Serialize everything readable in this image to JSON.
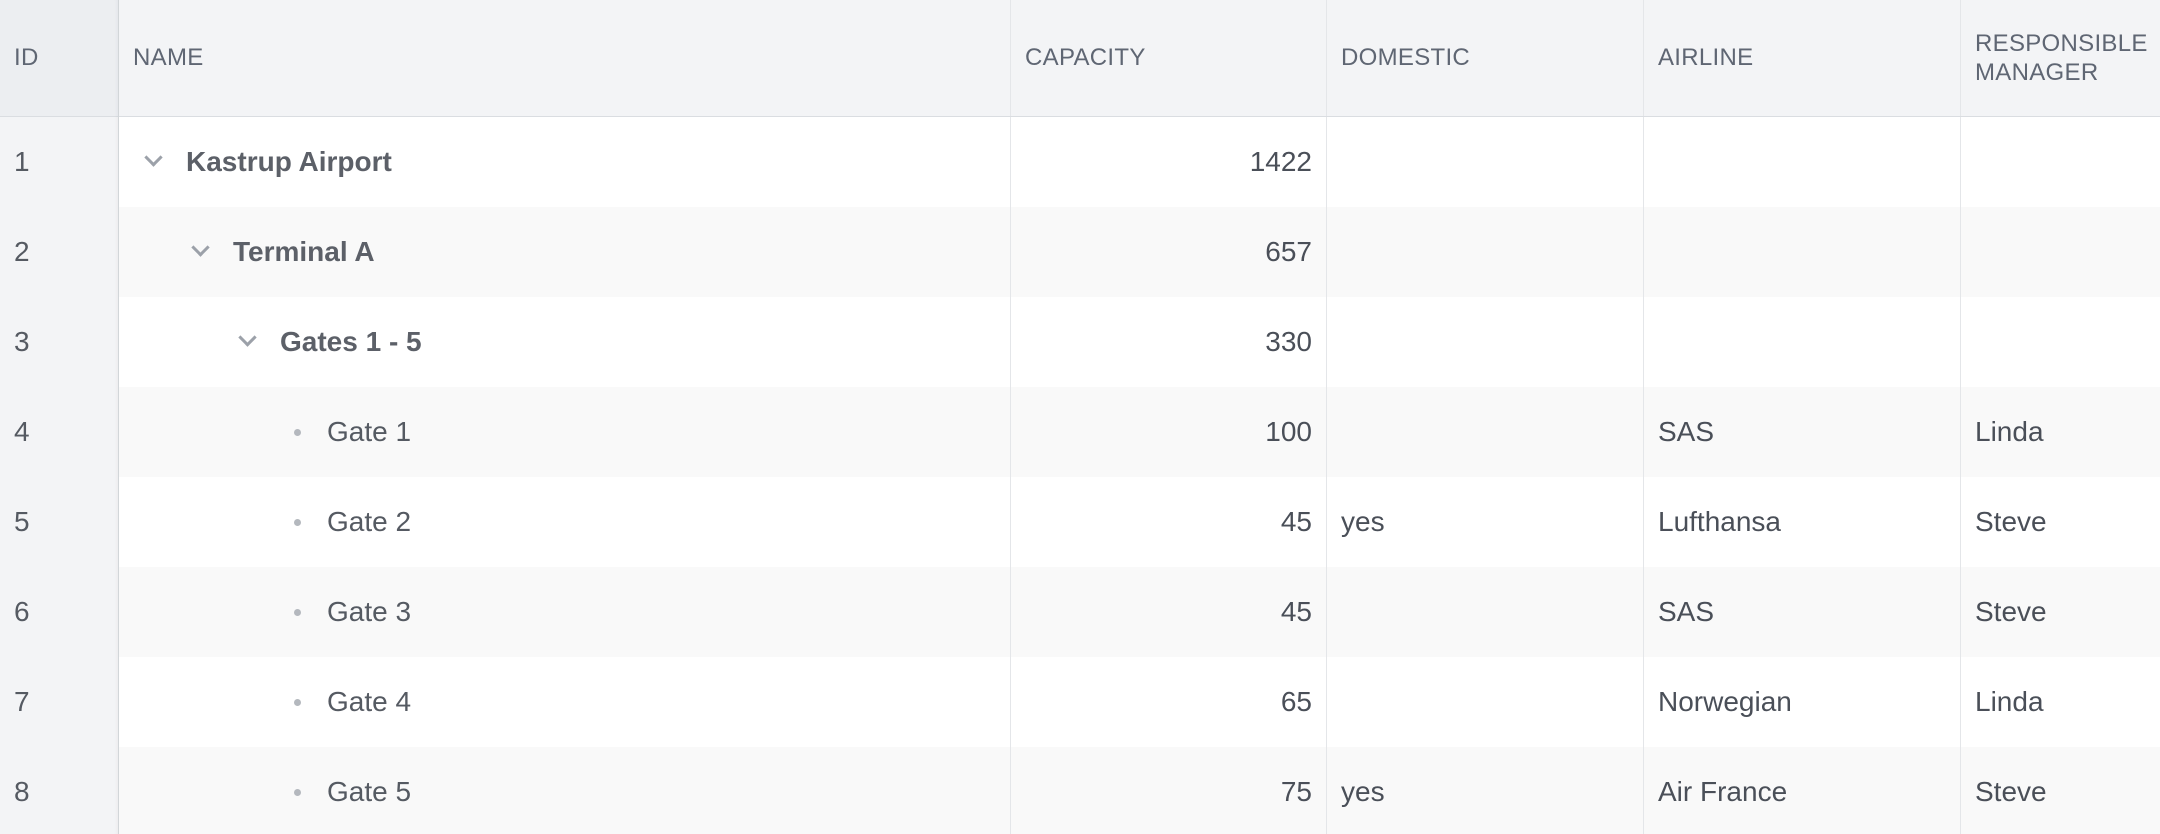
{
  "columns": {
    "id": "ID",
    "name": "NAME",
    "capacity": "CAPACITY",
    "domestic": "DOMESTIC",
    "airline": "AIRLINE",
    "manager": "RESPONSIBLE MANAGER"
  },
  "rows": [
    {
      "id": "1",
      "name": "Kastrup Airport",
      "level": 0,
      "type": "group",
      "capacity": "1422",
      "domestic": "",
      "airline": "",
      "manager": ""
    },
    {
      "id": "2",
      "name": "Terminal A",
      "level": 1,
      "type": "group",
      "capacity": "657",
      "domestic": "",
      "airline": "",
      "manager": ""
    },
    {
      "id": "3",
      "name": "Gates 1 - 5",
      "level": 2,
      "type": "group",
      "capacity": "330",
      "domestic": "",
      "airline": "",
      "manager": ""
    },
    {
      "id": "4",
      "name": "Gate 1",
      "level": 3,
      "type": "leaf",
      "capacity": "100",
      "domestic": "",
      "airline": "SAS",
      "manager": "Linda"
    },
    {
      "id": "5",
      "name": "Gate 2",
      "level": 3,
      "type": "leaf",
      "capacity": "45",
      "domestic": "yes",
      "airline": "Lufthansa",
      "manager": "Steve"
    },
    {
      "id": "6",
      "name": "Gate 3",
      "level": 3,
      "type": "leaf",
      "capacity": "45",
      "domestic": "",
      "airline": "SAS",
      "manager": "Steve"
    },
    {
      "id": "7",
      "name": "Gate 4",
      "level": 3,
      "type": "leaf",
      "capacity": "65",
      "domestic": "",
      "airline": "Norwegian",
      "manager": "Linda"
    },
    {
      "id": "8",
      "name": "Gate 5",
      "level": 3,
      "type": "leaf",
      "capacity": "75",
      "domestic": "yes",
      "airline": "Air France",
      "manager": "Steve"
    }
  ],
  "icons": {
    "expanded": "chevron-down-icon",
    "leaf": "bullet-icon"
  }
}
